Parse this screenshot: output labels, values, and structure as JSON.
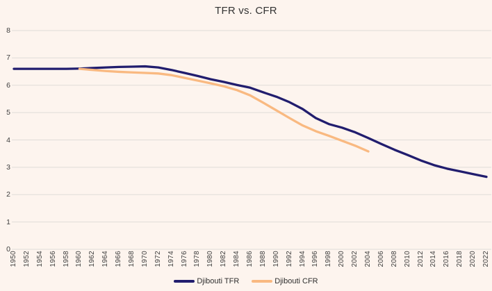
{
  "chart_data": {
    "type": "line",
    "title": "TFR vs. CFR",
    "background_color": "#fdf4ee",
    "grid_color": "#e0dcd8",
    "text_color": "#3d3d3d",
    "ylim": [
      0,
      8
    ],
    "y_ticks": [
      0,
      1,
      2,
      3,
      4,
      5,
      6,
      7,
      8
    ],
    "x_tick_step_years": 2,
    "grid": "horizontal-only",
    "legend_position": "bottom-center",
    "categories": [
      "1950",
      "1952",
      "1954",
      "1956",
      "1958",
      "1960",
      "1962",
      "1964",
      "1966",
      "1968",
      "1970",
      "1972",
      "1974",
      "1976",
      "1978",
      "1980",
      "1982",
      "1984",
      "1986",
      "1988",
      "1990",
      "1992",
      "1994",
      "1996",
      "1998",
      "2000",
      "2002",
      "2004",
      "2006",
      "2008",
      "2010",
      "2012",
      "2014",
      "2016",
      "2018",
      "2020",
      "2022"
    ],
    "series": [
      {
        "key": "tfr",
        "name": "Djibouti TFR",
        "color": "#211d6e",
        "years": [
          1950,
          1952,
          1954,
          1956,
          1958,
          1960,
          1962,
          1964,
          1966,
          1968,
          1970,
          1972,
          1974,
          1976,
          1978,
          1980,
          1982,
          1984,
          1986,
          1988,
          1990,
          1992,
          1994,
          1996,
          1998,
          2000,
          2002,
          2004,
          2006,
          2008,
          2010,
          2012,
          2014,
          2016,
          2018,
          2020,
          2022
        ],
        "values": [
          6.6,
          6.6,
          6.6,
          6.6,
          6.6,
          6.61,
          6.63,
          6.65,
          6.67,
          6.68,
          6.69,
          6.65,
          6.56,
          6.45,
          6.34,
          6.22,
          6.12,
          6.01,
          5.91,
          5.74,
          5.58,
          5.38,
          5.13,
          4.8,
          4.58,
          4.45,
          4.28,
          4.07,
          3.85,
          3.64,
          3.45,
          3.25,
          3.08,
          2.95,
          2.85,
          2.75,
          2.65
        ]
      },
      {
        "key": "cfr",
        "name": "Djibouti CFR",
        "color": "#f9b981",
        "years": [
          1960,
          1962,
          1964,
          1966,
          1968,
          1970,
          1972,
          1974,
          1976,
          1978,
          1980,
          1982,
          1984,
          1986,
          1988,
          1990,
          1992,
          1994,
          1996,
          1998,
          2000,
          2002,
          2004
        ],
        "values": [
          6.6,
          6.56,
          6.52,
          6.49,
          6.47,
          6.45,
          6.43,
          6.37,
          6.27,
          6.17,
          6.07,
          5.96,
          5.82,
          5.63,
          5.36,
          5.08,
          4.8,
          4.53,
          4.32,
          4.15,
          3.97,
          3.79,
          3.58
        ]
      }
    ]
  }
}
